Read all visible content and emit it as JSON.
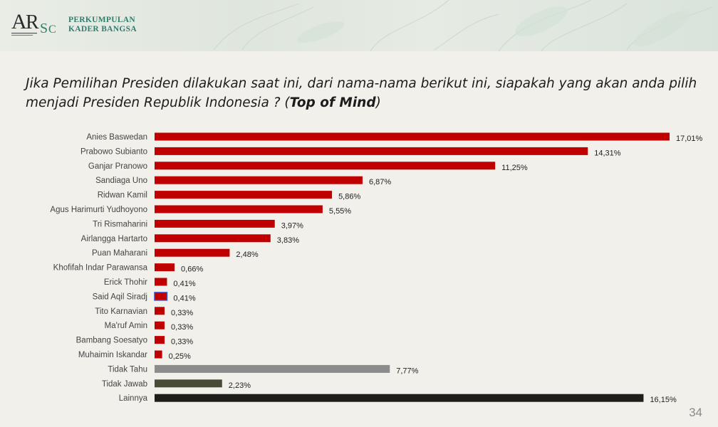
{
  "header": {
    "org_line1": "PERKUMPULAN",
    "org_line2": "KADER BANGSA",
    "logo_text": "ARSC"
  },
  "question": {
    "text": "Jika Pemilihan Presiden dilakukan saat ini, dari nama-nama berikut ini, siapakah yang akan anda pilih menjadi Presiden Republik Indonesia ? (",
    "emphasis": "Top of Mind",
    "suffix": ")"
  },
  "page_number": "34",
  "colors": {
    "candidate": "#c00000",
    "tidak_tahu": "#8c8c8c",
    "tidak_jawab": "#4b4a35",
    "lainnya": "#1e1e1a",
    "said_aqil_outline": "#3a4fc4"
  },
  "chart_data": {
    "type": "bar",
    "orientation": "horizontal",
    "categories": [
      "Anies Baswedan",
      "Prabowo Subianto",
      "Ganjar Pranowo",
      "Sandiaga Uno",
      "Ridwan Kamil",
      "Agus Harimurti Yudhoyono",
      "Tri Rismaharini",
      "Airlangga Hartarto",
      "Puan Maharani",
      "Khofifah Indar Parawansa",
      "Erick Thohir",
      "Said Aqil Siradj",
      "Tito Karnavian",
      "Ma'ruf Amin",
      "Bambang Soesatyo",
      "Muhaimin Iskandar",
      "Tidak Tahu",
      "Tidak Jawab",
      "Lainnya"
    ],
    "values": [
      17.01,
      14.31,
      11.25,
      6.87,
      5.86,
      5.55,
      3.97,
      3.83,
      2.48,
      0.66,
      0.41,
      0.41,
      0.33,
      0.33,
      0.33,
      0.25,
      7.77,
      2.23,
      16.15
    ],
    "labels": [
      "17,01%",
      "14,31%",
      "11,25%",
      "6,87%",
      "5,86%",
      "5,55%",
      "3,97%",
      "3,83%",
      "2,48%",
      "0,66%",
      "0,41%",
      "0,41%",
      "0,33%",
      "0,33%",
      "0,33%",
      "0,25%",
      "7,77%",
      "2,23%",
      "16,15%"
    ],
    "bar_colors": [
      "candidate",
      "candidate",
      "candidate",
      "candidate",
      "candidate",
      "candidate",
      "candidate",
      "candidate",
      "candidate",
      "candidate",
      "candidate",
      "candidate",
      "candidate",
      "candidate",
      "candidate",
      "candidate",
      "tidak_tahu",
      "tidak_jawab",
      "lainnya"
    ],
    "title": "",
    "xlabel": "",
    "ylabel": "",
    "xlim": [
      0,
      17.01
    ],
    "grid": false,
    "legend": "none"
  }
}
